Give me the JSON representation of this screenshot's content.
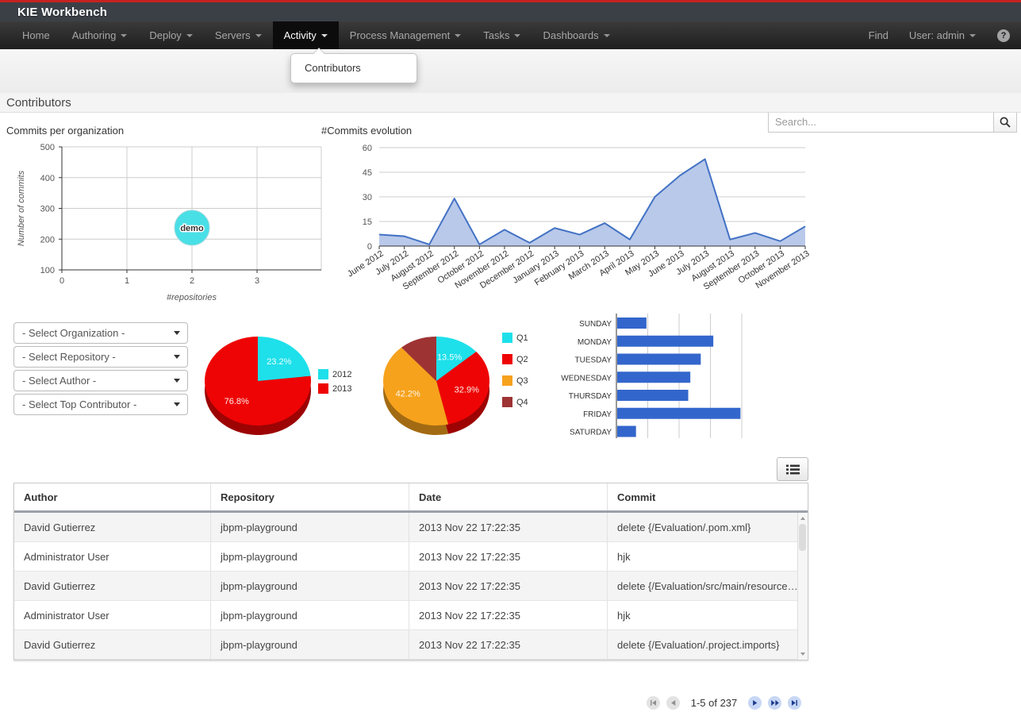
{
  "navbar": {
    "brand": "KIE Workbench",
    "items": [
      {
        "label": "Home",
        "caret": false,
        "active": false
      },
      {
        "label": "Authoring",
        "caret": true,
        "active": false
      },
      {
        "label": "Deploy",
        "caret": true,
        "active": false
      },
      {
        "label": "Servers",
        "caret": true,
        "active": false
      },
      {
        "label": "Activity",
        "caret": true,
        "active": true
      },
      {
        "label": "Process Management",
        "caret": true,
        "active": false
      },
      {
        "label": "Tasks",
        "caret": true,
        "active": false
      },
      {
        "label": "Dashboards",
        "caret": true,
        "active": false
      }
    ],
    "find_label": "Find",
    "user_label": "User: admin",
    "dropdown": {
      "items": [
        "Contributors"
      ]
    }
  },
  "search": {
    "placeholder": "Search..."
  },
  "page": {
    "title": "Contributors"
  },
  "filters": {
    "selects": [
      "- Select Organization -",
      "- Select Repository -",
      "- Select Author -",
      "- Select Top Contributor -"
    ]
  },
  "chart_data": [
    {
      "type": "scatter",
      "title": "Commits per organization",
      "xlabel": "#repositories",
      "ylabel": "Number of commits",
      "xlim": [
        0,
        4
      ],
      "ylim": [
        100,
        500
      ],
      "xticks": [
        0,
        1,
        2,
        3
      ],
      "yticks": [
        100,
        200,
        300,
        400,
        500
      ],
      "points": [
        {
          "label": "demo",
          "x": 2,
          "y": 237,
          "color": "#49dfe6"
        }
      ]
    },
    {
      "type": "area",
      "title": "#Commits evolution",
      "x": [
        "June 2012",
        "July 2012",
        "August 2012",
        "September 2012",
        "October 2012",
        "November 2012",
        "December 2012",
        "January 2013",
        "February 2013",
        "March 2013",
        "April 2013",
        "May 2013",
        "June 2013",
        "July 2013",
        "August 2013",
        "September 2013",
        "October 2013",
        "November 2013"
      ],
      "values": [
        7,
        6,
        1,
        29,
        1,
        10,
        2,
        11,
        7,
        14,
        4,
        30,
        43,
        53,
        4,
        8,
        3,
        12
      ],
      "ylim": [
        0,
        60
      ],
      "yticks": [
        0,
        15,
        30,
        45,
        60
      ],
      "line_color": "#4372c4",
      "fill_color": "#b9c9ea"
    },
    {
      "type": "pie",
      "title": "",
      "labels": [
        "2012",
        "2013"
      ],
      "values": [
        23.2,
        76.8
      ],
      "slice_labels": [
        "23.2%",
        "76.8%"
      ],
      "colors": [
        "#1ee0ea",
        "#ee0404"
      ],
      "legend_position": "right"
    },
    {
      "type": "pie",
      "title": "",
      "labels": [
        "Q1",
        "Q2",
        "Q3",
        "Q4"
      ],
      "values": [
        13.5,
        32.9,
        42.2,
        11.4
      ],
      "slice_labels": [
        "13.5%",
        "32.9%",
        "42.2%",
        ""
      ],
      "colors": [
        "#1ee0ea",
        "#ee0404",
        "#f6a21d",
        "#9e3334"
      ],
      "legend_position": "right"
    },
    {
      "type": "bar",
      "title": "",
      "orientation": "horizontal",
      "categories": [
        "SUNDAY",
        "MONDAY",
        "TUESDAY",
        "WEDNESDAY",
        "THURSDAY",
        "FRIDAY",
        "SATURDAY"
      ],
      "values": [
        14,
        46,
        40,
        35,
        34,
        59,
        9
      ],
      "xlim": [
        0,
        60
      ],
      "color": "#3366cc"
    }
  ],
  "table": {
    "columns": [
      "Author",
      "Repository",
      "Date",
      "Commit"
    ],
    "rows": [
      [
        "David Gutierrez",
        "jbpm-playground",
        "2013 Nov 22 17:22:35",
        "delete {/Evaluation/.pom.xml}"
      ],
      [
        "Administrator User",
        "jbpm-playground",
        "2013 Nov 22 17:22:35",
        "hjk"
      ],
      [
        "David Gutierrez",
        "jbpm-playground",
        "2013 Nov 22 17:22:35",
        "delete {/Evaluation/src/main/resource…"
      ],
      [
        "Administrator User",
        "jbpm-playground",
        "2013 Nov 22 17:22:35",
        "hjk"
      ],
      [
        "David Gutierrez",
        "jbpm-playground",
        "2013 Nov 22 17:22:35",
        "delete {/Evaluation/.project.imports}"
      ]
    ]
  },
  "pagination": {
    "label": "1-5 of 237",
    "buttons": [
      {
        "name": "first",
        "disabled": true
      },
      {
        "name": "previous",
        "disabled": true
      },
      {
        "name": "next",
        "disabled": false
      },
      {
        "name": "fast-forward",
        "disabled": false
      },
      {
        "name": "last",
        "disabled": false
      }
    ]
  },
  "colors": {
    "accent_red": "#c6221f",
    "brand_bar": "#3b4047",
    "navbar_bg": "#1f1f1f",
    "bar_blue": "#3366cc",
    "line_blue": "#4372c4"
  }
}
